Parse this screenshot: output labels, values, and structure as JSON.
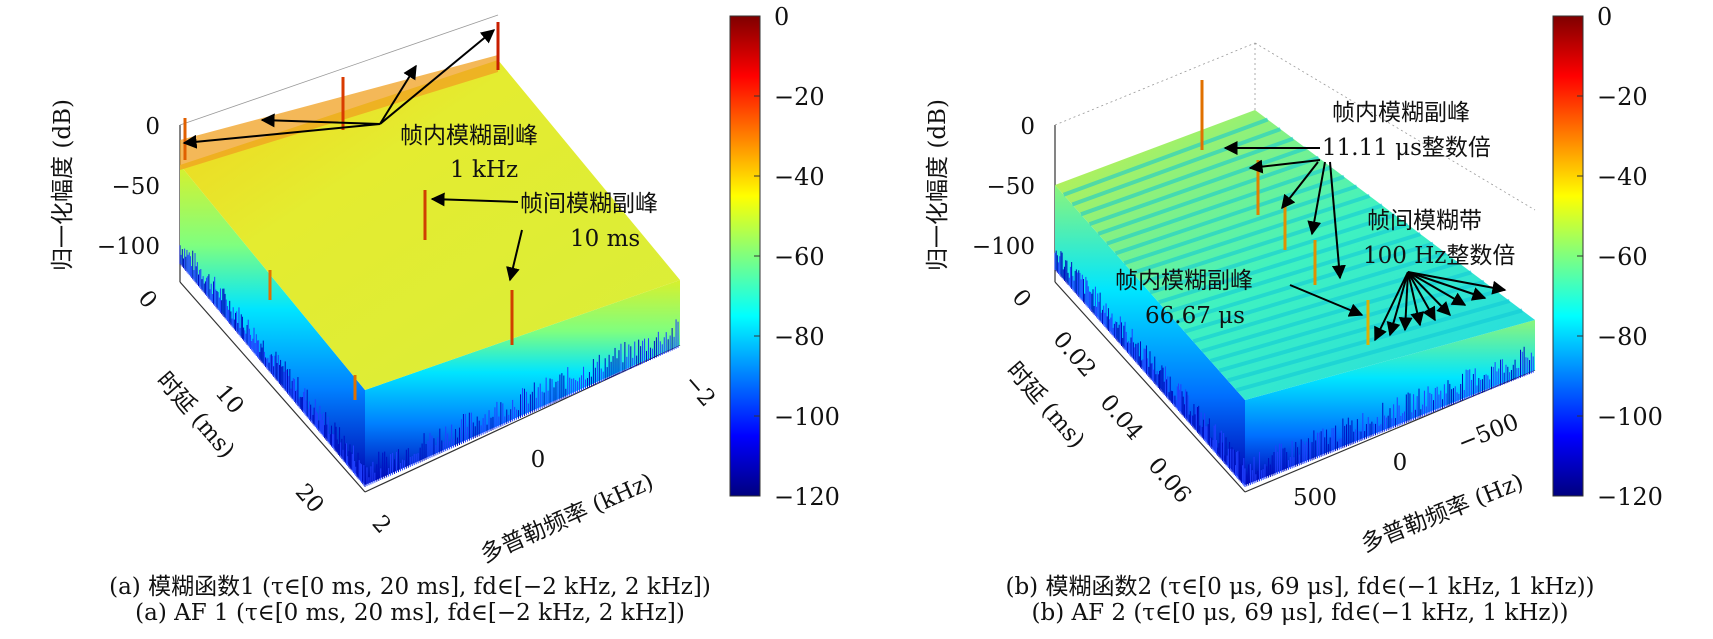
{
  "colorbar_palette": [
    "#00007f",
    "#0000ff",
    "#007fff",
    "#00ffff",
    "#7fff7f",
    "#ffff00",
    "#ff7f00",
    "#ff0000",
    "#7f0000"
  ],
  "chart_data": [
    {
      "type": "surface",
      "zlabel": "归一化幅度 (dB)",
      "ylabel": "时延 (ms)",
      "xlabel": "多普勒频率 (kHz)",
      "zticks": [
        "0",
        "−50",
        "−100"
      ],
      "delay_ticks": [
        "0",
        "10",
        "20"
      ],
      "doppler_ticks": [
        "−2",
        "0",
        "2"
      ],
      "zlim": [
        -120,
        0
      ],
      "colorbar_ticks": [
        "0",
        "−20",
        "−40",
        "−60",
        "−80",
        "−100",
        "−120"
      ],
      "annotations": [
        {
          "text": "帧内模糊副峰",
          "sub": "1 kHz"
        },
        {
          "text": "帧间模糊副峰",
          "sub": "10 ms"
        }
      ],
      "caption_cn": "(a) 模糊函数1 (τ∈[0 ms, 20 ms], fd∈[−2 kHz, 2 kHz])",
      "caption_en": "(a) AF 1 (τ∈[0 ms, 20 ms], fd∈[−2 kHz, 2 kHz])"
    },
    {
      "type": "surface",
      "zlabel": "归一化幅度 (dB)",
      "ylabel": "时延 (ms)",
      "xlabel": "多普勒频率 (Hz)",
      "zticks": [
        "0",
        "−50",
        "−100"
      ],
      "delay_ticks": [
        "0",
        "0.02",
        "0.04",
        "0.06"
      ],
      "doppler_ticks": [
        "−500",
        "0",
        "500"
      ],
      "zlim": [
        -120,
        0
      ],
      "colorbar_ticks": [
        "0",
        "−20",
        "−40",
        "−60",
        "−80",
        "−100",
        "−120"
      ],
      "annotations": [
        {
          "text": "帧内模糊副峰",
          "sub": "11.11 μs整数倍"
        },
        {
          "text": "帧间模糊带",
          "sub": "100 Hz整数倍"
        },
        {
          "text": "帧内模糊副峰",
          "sub": "66.67 μs"
        }
      ],
      "caption_cn": "(b) 模糊函数2 (τ∈[0 μs, 69 μs], fd∈(−1 kHz, 1 kHz))",
      "caption_en": "(b) AF 2 (τ∈[0 μs, 69 μs], fd∈(−1 kHz, 1 kHz))"
    }
  ]
}
